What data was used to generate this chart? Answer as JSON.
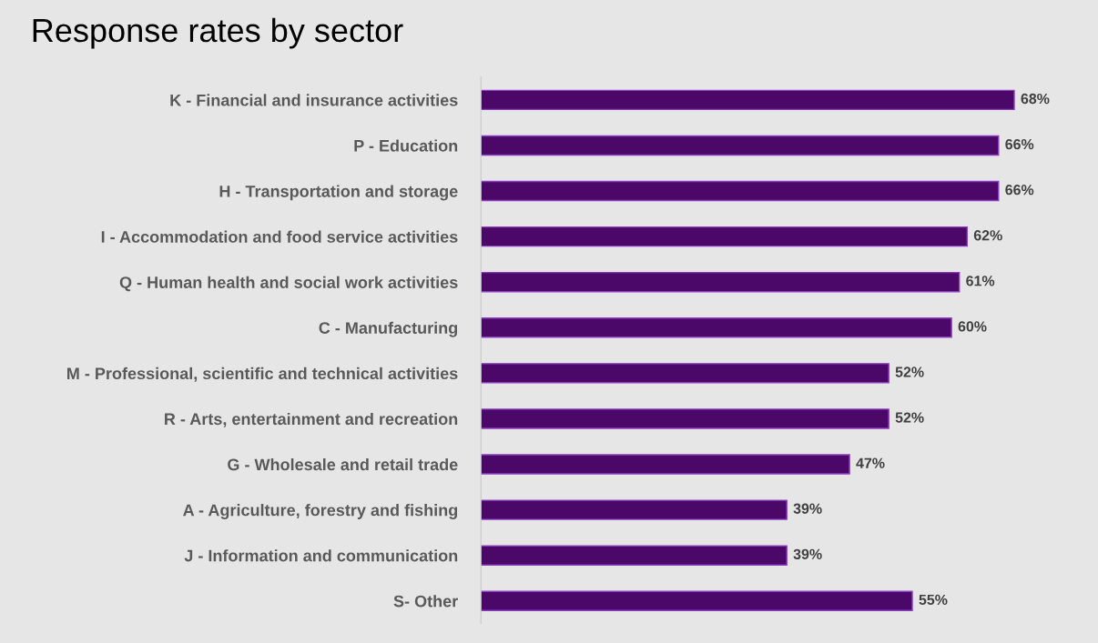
{
  "chart_data": {
    "type": "bar",
    "orientation": "horizontal",
    "title": "Response rates by sector",
    "categories": [
      "K - Financial and insurance activities",
      "P - Education",
      "H - Transportation and storage",
      "I - Accommodation and food service activities",
      "Q - Human health and social work activities",
      "C - Manufacturing",
      "M - Professional, scientific and technical activities",
      "R - Arts, entertainment and recreation",
      "G - Wholesale and retail trade",
      "A - Agriculture, forestry and fishing",
      "J - Information and communication",
      "S- Other"
    ],
    "values": [
      68,
      66,
      66,
      62,
      61,
      60,
      52,
      52,
      47,
      39,
      39,
      55
    ],
    "value_labels": [
      "68%",
      "66%",
      "66%",
      "62%",
      "61%",
      "60%",
      "52%",
      "52%",
      "47%",
      "39%",
      "39%",
      "55%"
    ],
    "color": "#4b0868",
    "tick_labels": "y"
  }
}
